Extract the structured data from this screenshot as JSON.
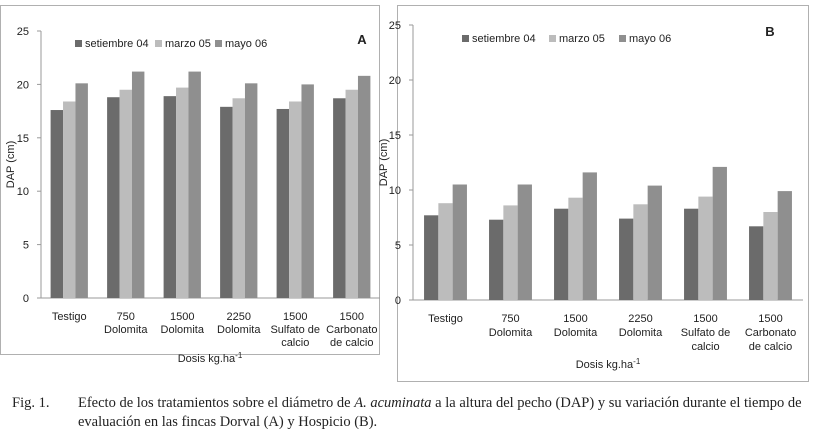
{
  "chart_data": [
    {
      "type": "bar",
      "panel_label": "A",
      "ylabel": "DAP (cm)",
      "xlabel_main": "Dosis kg.ha",
      "xlabel_sup": "-1",
      "ylim": [
        0,
        25
      ],
      "yticks": [
        "0",
        "5",
        "10",
        "15",
        "20",
        "25"
      ],
      "categories": [
        [
          "Testigo"
        ],
        [
          "750",
          "Dolomita"
        ],
        [
          "1500",
          "Dolomita"
        ],
        [
          "2250",
          "Dolomita"
        ],
        [
          "1500",
          "Sulfato de",
          "calcio"
        ],
        [
          "1500",
          "Carbonato",
          "de calcio"
        ]
      ],
      "series": [
        {
          "name": "setiembre 04",
          "values": [
            17.6,
            18.8,
            18.9,
            17.9,
            17.7,
            18.7
          ]
        },
        {
          "name": "marzo 05",
          "values": [
            18.4,
            19.5,
            19.7,
            18.7,
            18.4,
            19.5
          ]
        },
        {
          "name": "mayo 06",
          "values": [
            20.1,
            21.2,
            21.2,
            20.1,
            20.0,
            20.8
          ]
        }
      ],
      "legend": "top",
      "grid": false
    },
    {
      "type": "bar",
      "panel_label": "B",
      "ylabel": "DAP (cm)",
      "xlabel_main": "Dosis kg.ha",
      "xlabel_sup": "-1",
      "ylim": [
        0,
        25
      ],
      "yticks": [
        "0",
        "5",
        "10",
        "15",
        "20",
        "25"
      ],
      "categories": [
        [
          "Testigo"
        ],
        [
          "750",
          "Dolomita"
        ],
        [
          "1500",
          "Dolomita"
        ],
        [
          "2250",
          "Dolomita"
        ],
        [
          "1500",
          "Sulfato de",
          "calcio"
        ],
        [
          "1500",
          "Carbonato",
          "de calcio"
        ]
      ],
      "series": [
        {
          "name": "setiembre 04",
          "values": [
            7.7,
            7.3,
            8.3,
            7.4,
            8.3,
            6.7
          ]
        },
        {
          "name": "marzo 05",
          "values": [
            8.8,
            8.6,
            9.3,
            8.7,
            9.4,
            8.0
          ]
        },
        {
          "name": "mayo 06",
          "values": [
            10.5,
            10.5,
            11.6,
            10.4,
            12.1,
            9.9
          ]
        }
      ],
      "legend": "top",
      "grid": false
    }
  ],
  "colors": {
    "series": [
      "#6b6b6b",
      "#bcbcbc",
      "#8f8f8f"
    ],
    "axis": "#9a9a9a",
    "frame": "#b0b0b0"
  },
  "caption": {
    "number": "Fig. 1.",
    "line_pre": "Efecto de los tratamientos sobre el diámetro de ",
    "species": "A. acuminata",
    "line_post": " a la altura del pecho (DAP) y su variación durante el tiempo de evaluación en las fincas Dorval (A) y  Hospicio (B)."
  }
}
